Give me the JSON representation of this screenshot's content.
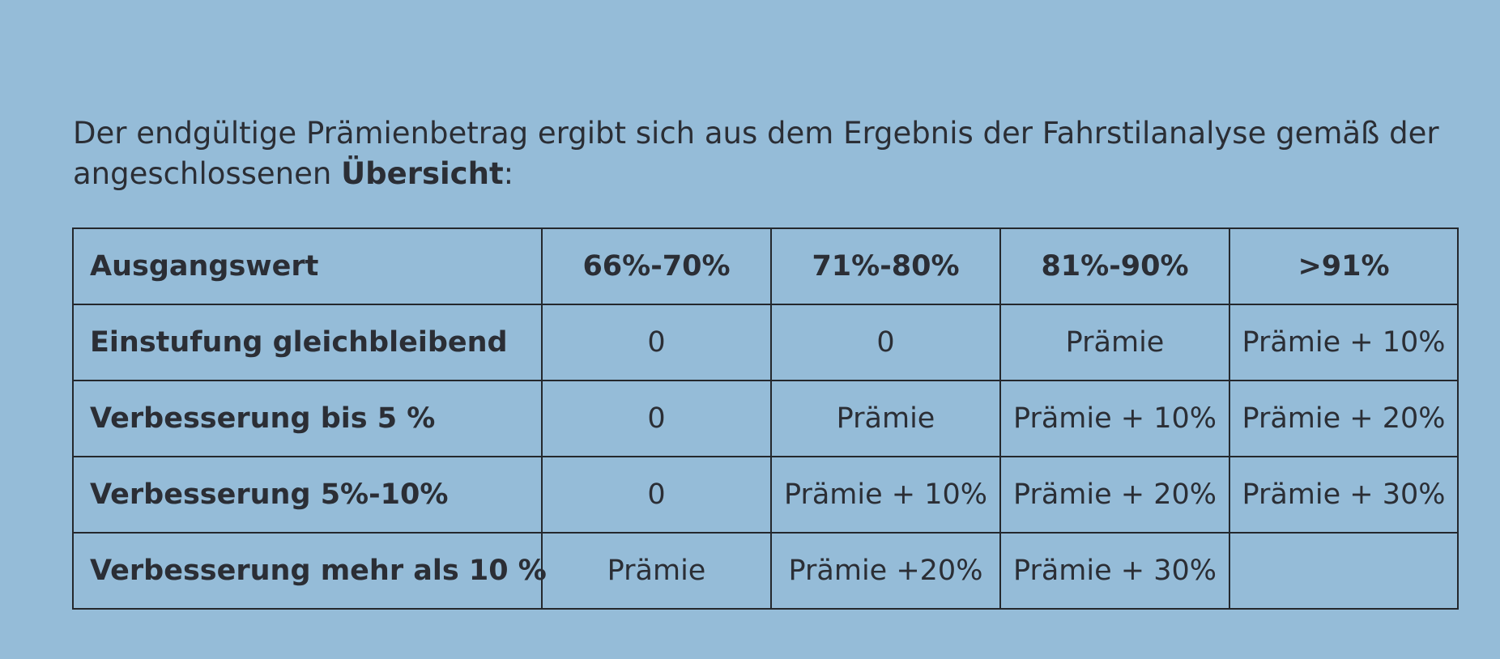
{
  "intro": {
    "text_before": "Der endgültige Prämienbetrag ergibt sich aus dem Ergebnis der Fahrstilanalyse gemäß der angeschlossenen ",
    "bold_word": "Übersicht",
    "text_after": ":"
  },
  "table": {
    "header": [
      "Ausgangswert",
      "66%-70%",
      "71%-80%",
      "81%-90%",
      ">91%"
    ],
    "rows": [
      {
        "label": "Einstufung gleichbleibend",
        "cells": [
          "0",
          "0",
          "Prämie",
          "Prämie + 10%"
        ]
      },
      {
        "label": "Verbesserung bis 5 %",
        "cells": [
          "0",
          "Prämie",
          "Prämie + 10%",
          "Prämie + 20%"
        ]
      },
      {
        "label": "Verbesserung 5%-10%",
        "cells": [
          "0",
          "Prämie + 10%",
          "Prämie + 20%",
          "Prämie + 30%"
        ]
      },
      {
        "label": "Verbesserung mehr als 10 %",
        "cells": [
          "Prämie",
          "Prämie +20%",
          "Prämie + 30%",
          ""
        ]
      }
    ]
  }
}
